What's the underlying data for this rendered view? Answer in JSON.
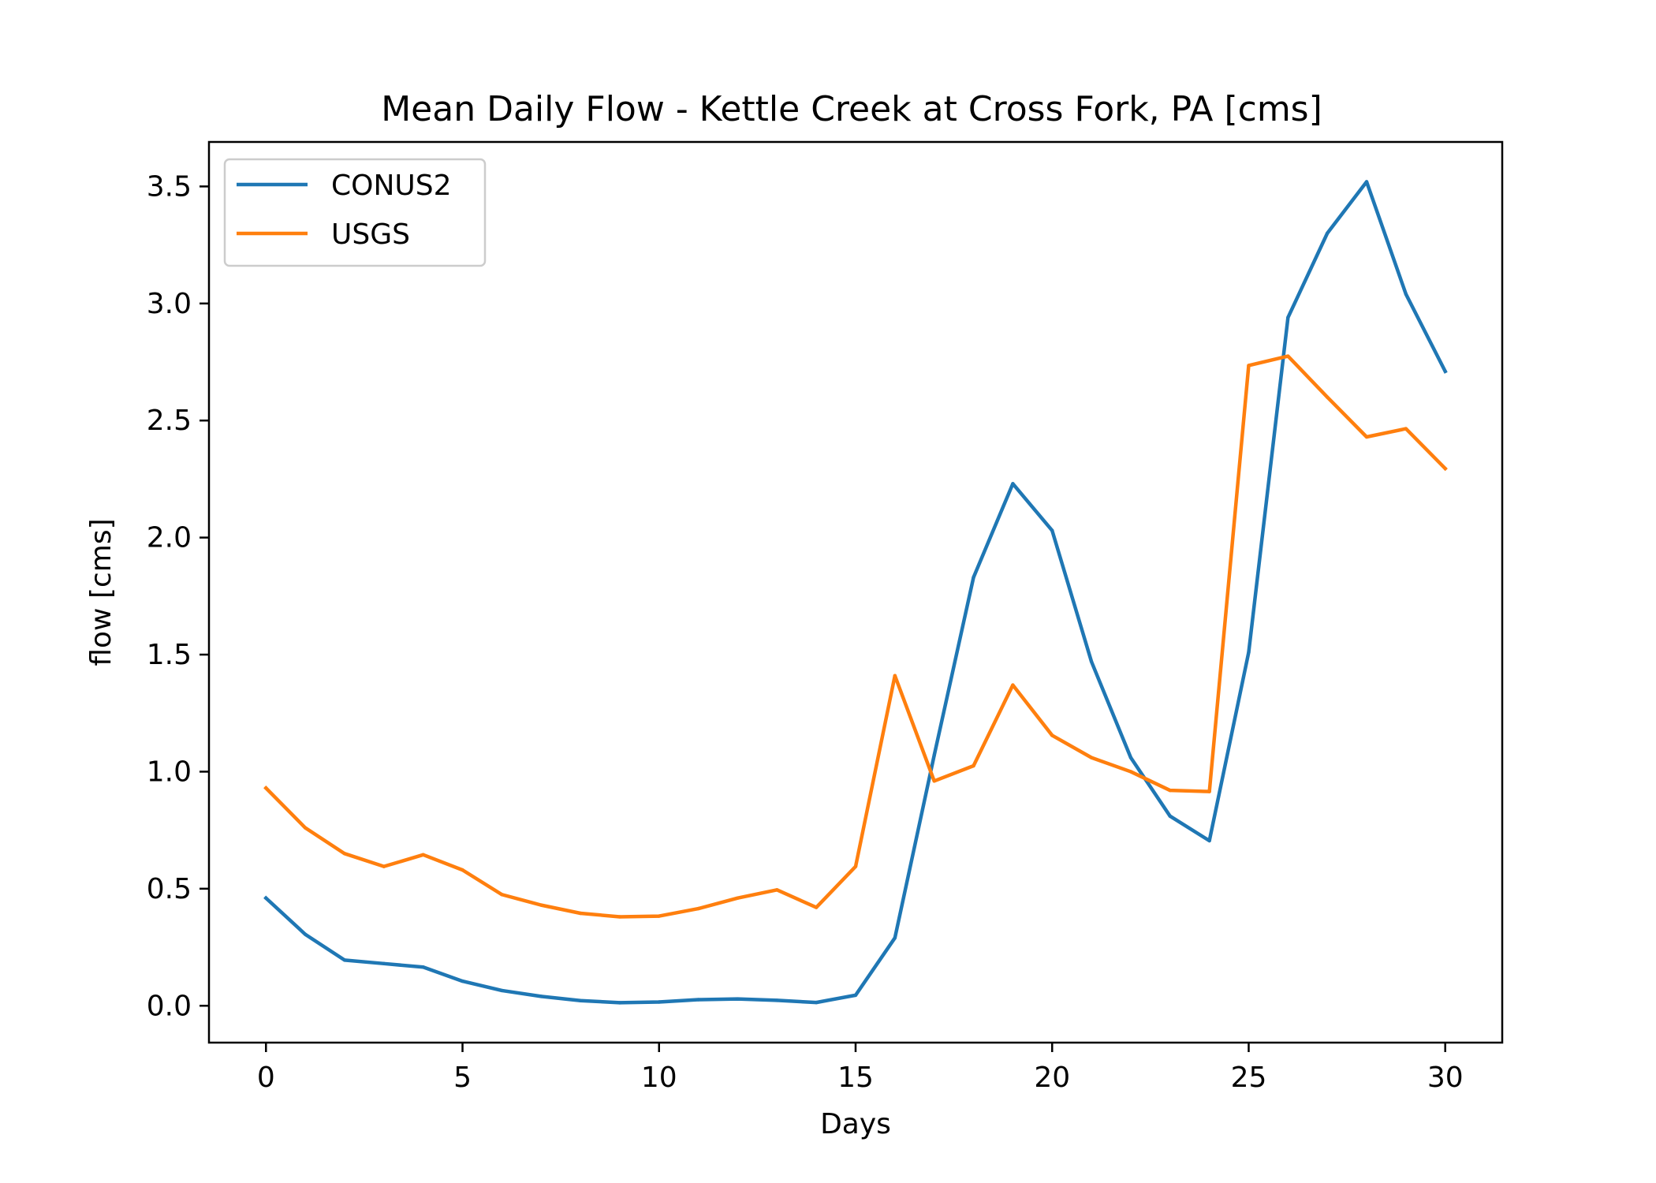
{
  "chart_data": {
    "type": "line",
    "title": "Mean Daily Flow - Kettle Creek at Cross Fork, PA [cms]",
    "xlabel": "Days",
    "ylabel": "flow [cms]",
    "xlim": [
      -1.45,
      31.45
    ],
    "ylim": [
      -0.1575,
      3.69
    ],
    "xticks": [
      0,
      5,
      10,
      15,
      20,
      25,
      30
    ],
    "yticks": [
      0.0,
      0.5,
      1.0,
      1.5,
      2.0,
      2.5,
      3.0,
      3.5
    ],
    "xtick_labels": [
      "0",
      "5",
      "10",
      "15",
      "20",
      "25",
      "30"
    ],
    "ytick_labels": [
      "0.0",
      "0.5",
      "1.0",
      "1.5",
      "2.0",
      "2.5",
      "3.0",
      "3.5"
    ],
    "grid": false,
    "legend_position": "upper-left",
    "x": [
      0,
      1,
      2,
      3,
      4,
      5,
      6,
      7,
      8,
      9,
      10,
      11,
      12,
      13,
      14,
      15,
      16,
      17,
      18,
      19,
      20,
      21,
      22,
      23,
      24,
      25,
      26,
      27,
      28,
      29,
      30
    ],
    "series": [
      {
        "name": "CONUS2",
        "color": "#1f77b4",
        "values": [
          0.46,
          0.305,
          0.195,
          0.18,
          0.165,
          0.105,
          0.065,
          0.04,
          0.022,
          0.013,
          0.016,
          0.026,
          0.029,
          0.023,
          0.014,
          0.045,
          0.29,
          1.07,
          1.83,
          2.23,
          2.03,
          1.47,
          1.06,
          0.81,
          0.705,
          1.51,
          2.94,
          3.3,
          3.52,
          3.04,
          2.71
        ]
      },
      {
        "name": "USGS",
        "color": "#ff7f0e",
        "values": [
          0.93,
          0.76,
          0.65,
          0.595,
          0.645,
          0.58,
          0.475,
          0.43,
          0.395,
          0.38,
          0.383,
          0.415,
          0.46,
          0.495,
          0.42,
          0.595,
          1.41,
          0.96,
          1.025,
          1.37,
          1.155,
          1.06,
          1.0,
          0.92,
          0.915,
          2.735,
          2.775,
          2.6,
          2.43,
          2.465,
          2.295
        ]
      }
    ]
  }
}
